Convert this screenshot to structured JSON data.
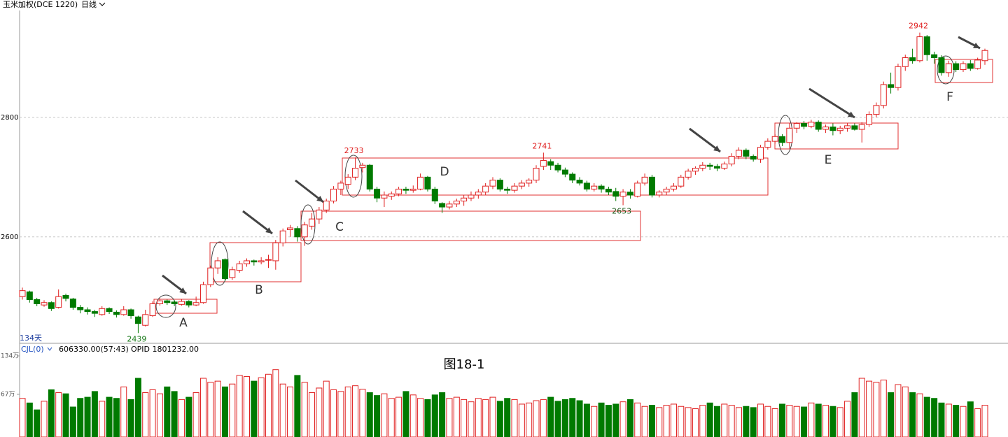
{
  "header": {
    "title": "玉米加权(DCE 1220)",
    "period": "日线",
    "days": "134天",
    "volume_info": "606330.00(57:43)",
    "oi_info": "OPID 1801232.00",
    "figure": "图18-1"
  },
  "chart_data": {
    "type": "candlestick",
    "ylim": [
      2423,
      2979
    ],
    "yticks": [
      2600,
      2800
    ],
    "grid": true,
    "up_color": "#e02020",
    "down_color": "#007a00",
    "zones": [
      "A",
      "B",
      "C",
      "D",
      "E",
      "F"
    ],
    "ohlc": [
      [
        2500,
        2515,
        2495,
        2510
      ],
      [
        2508,
        2510,
        2490,
        2495
      ],
      [
        2495,
        2498,
        2484,
        2488
      ],
      [
        2486,
        2494,
        2483,
        2490
      ],
      [
        2490,
        2492,
        2476,
        2480
      ],
      [
        2482,
        2512,
        2480,
        2500
      ],
      [
        2502,
        2505,
        2492,
        2497
      ],
      [
        2496,
        2498,
        2478,
        2482
      ],
      [
        2482,
        2486,
        2472,
        2478
      ],
      [
        2478,
        2482,
        2470,
        2475
      ],
      [
        2475,
        2478,
        2466,
        2472
      ],
      [
        2470,
        2484,
        2468,
        2480
      ],
      [
        2480,
        2482,
        2471,
        2475
      ],
      [
        2474,
        2477,
        2465,
        2470
      ],
      [
        2470,
        2484,
        2468,
        2478
      ],
      [
        2478,
        2480,
        2463,
        2468
      ],
      [
        2466,
        2468,
        2439,
        2455
      ],
      [
        2452,
        2478,
        2450,
        2470
      ],
      [
        2468,
        2492,
        2466,
        2488
      ],
      [
        2488,
        2497,
        2485,
        2493
      ],
      [
        2493,
        2495,
        2486,
        2490
      ],
      [
        2491,
        2494,
        2484,
        2488
      ],
      [
        2487,
        2496,
        2485,
        2492
      ],
      [
        2492,
        2494,
        2482,
        2486
      ],
      [
        2486,
        2500,
        2484,
        2490
      ],
      [
        2490,
        2525,
        2488,
        2520
      ],
      [
        2520,
        2552,
        2516,
        2548
      ],
      [
        2548,
        2566,
        2538,
        2560
      ],
      [
        2562,
        2564,
        2526,
        2530
      ],
      [
        2532,
        2550,
        2528,
        2545
      ],
      [
        2544,
        2560,
        2540,
        2555
      ],
      [
        2555,
        2564,
        2550,
        2560
      ],
      [
        2560,
        2562,
        2552,
        2558
      ],
      [
        2558,
        2566,
        2554,
        2560
      ],
      [
        2561,
        2570,
        2548,
        2562
      ],
      [
        2560,
        2595,
        2545,
        2590
      ],
      [
        2590,
        2614,
        2584,
        2610
      ],
      [
        2612,
        2620,
        2600,
        2615
      ],
      [
        2614,
        2618,
        2592,
        2600
      ],
      [
        2600,
        2625,
        2585,
        2620
      ],
      [
        2618,
        2640,
        2612,
        2630
      ],
      [
        2630,
        2650,
        2622,
        2645
      ],
      [
        2645,
        2664,
        2640,
        2660
      ],
      [
        2660,
        2685,
        2656,
        2680
      ],
      [
        2680,
        2694,
        2670,
        2690
      ],
      [
        2688,
        2705,
        2680,
        2700
      ],
      [
        2700,
        2733,
        2695,
        2715
      ],
      [
        2716,
        2724,
        2708,
        2720
      ],
      [
        2720,
        2722,
        2676,
        2680
      ],
      [
        2680,
        2684,
        2658,
        2665
      ],
      [
        2665,
        2676,
        2650,
        2670
      ],
      [
        2668,
        2676,
        2662,
        2672
      ],
      [
        2672,
        2684,
        2668,
        2680
      ],
      [
        2680,
        2684,
        2672,
        2678
      ],
      [
        2678,
        2686,
        2674,
        2680
      ],
      [
        2680,
        2706,
        2678,
        2700
      ],
      [
        2700,
        2702,
        2676,
        2680
      ],
      [
        2680,
        2684,
        2655,
        2660
      ],
      [
        2656,
        2658,
        2640,
        2650
      ],
      [
        2650,
        2660,
        2646,
        2655
      ],
      [
        2655,
        2664,
        2650,
        2660
      ],
      [
        2660,
        2670,
        2652,
        2665
      ],
      [
        2665,
        2676,
        2660,
        2670
      ],
      [
        2670,
        2680,
        2664,
        2675
      ],
      [
        2675,
        2690,
        2670,
        2685
      ],
      [
        2685,
        2700,
        2680,
        2695
      ],
      [
        2695,
        2698,
        2676,
        2680
      ],
      [
        2680,
        2684,
        2672,
        2678
      ],
      [
        2678,
        2690,
        2674,
        2685
      ],
      [
        2685,
        2695,
        2680,
        2690
      ],
      [
        2690,
        2698,
        2684,
        2695
      ],
      [
        2695,
        2720,
        2690,
        2715
      ],
      [
        2718,
        2741,
        2712,
        2728
      ],
      [
        2726,
        2730,
        2712,
        2720
      ],
      [
        2720,
        2724,
        2708,
        2712
      ],
      [
        2712,
        2716,
        2700,
        2705
      ],
      [
        2705,
        2708,
        2690,
        2695
      ],
      [
        2695,
        2700,
        2686,
        2690
      ],
      [
        2690,
        2694,
        2676,
        2680
      ],
      [
        2680,
        2690,
        2676,
        2685
      ],
      [
        2685,
        2688,
        2674,
        2680
      ],
      [
        2680,
        2684,
        2670,
        2675
      ],
      [
        2676,
        2682,
        2660,
        2668
      ],
      [
        2668,
        2680,
        2653,
        2675
      ],
      [
        2675,
        2680,
        2664,
        2670
      ],
      [
        2668,
        2694,
        2666,
        2690
      ],
      [
        2690,
        2706,
        2686,
        2700
      ],
      [
        2700,
        2704,
        2666,
        2670
      ],
      [
        2670,
        2678,
        2666,
        2675
      ],
      [
        2675,
        2684,
        2670,
        2680
      ],
      [
        2680,
        2690,
        2676,
        2685
      ],
      [
        2685,
        2704,
        2682,
        2700
      ],
      [
        2700,
        2714,
        2696,
        2710
      ],
      [
        2710,
        2718,
        2704,
        2715
      ],
      [
        2715,
        2725,
        2710,
        2720
      ],
      [
        2720,
        2724,
        2712,
        2718
      ],
      [
        2718,
        2722,
        2710,
        2715
      ],
      [
        2715,
        2726,
        2712,
        2722
      ],
      [
        2722,
        2740,
        2718,
        2735
      ],
      [
        2735,
        2750,
        2730,
        2745
      ],
      [
        2745,
        2748,
        2730,
        2735
      ],
      [
        2735,
        2738,
        2726,
        2730
      ],
      [
        2730,
        2754,
        2724,
        2750
      ],
      [
        2750,
        2765,
        2746,
        2760
      ],
      [
        2760,
        2772,
        2756,
        2768
      ],
      [
        2768,
        2772,
        2752,
        2758
      ],
      [
        2758,
        2790,
        2748,
        2782
      ],
      [
        2782,
        2792,
        2774,
        2790
      ],
      [
        2790,
        2794,
        2780,
        2785
      ],
      [
        2785,
        2796,
        2782,
        2792
      ],
      [
        2792,
        2795,
        2776,
        2780
      ],
      [
        2780,
        2788,
        2774,
        2784
      ],
      [
        2784,
        2790,
        2770,
        2778
      ],
      [
        2778,
        2786,
        2772,
        2782
      ],
      [
        2782,
        2790,
        2776,
        2786
      ],
      [
        2786,
        2790,
        2778,
        2780
      ],
      [
        2780,
        2792,
        2758,
        2788
      ],
      [
        2788,
        2810,
        2784,
        2805
      ],
      [
        2805,
        2825,
        2800,
        2820
      ],
      [
        2820,
        2860,
        2815,
        2855
      ],
      [
        2855,
        2875,
        2840,
        2850
      ],
      [
        2850,
        2890,
        2845,
        2885
      ],
      [
        2885,
        2905,
        2878,
        2900
      ],
      [
        2900,
        2915,
        2890,
        2895
      ],
      [
        2895,
        2942,
        2892,
        2935
      ],
      [
        2935,
        2938,
        2895,
        2905
      ],
      [
        2905,
        2910,
        2890,
        2900
      ],
      [
        2900,
        2904,
        2870,
        2875
      ],
      [
        2875,
        2895,
        2868,
        2890
      ],
      [
        2890,
        2894,
        2876,
        2880
      ],
      [
        2880,
        2894,
        2876,
        2890
      ],
      [
        2890,
        2896,
        2878,
        2882
      ],
      [
        2882,
        2900,
        2880,
        2896
      ],
      [
        2895,
        2915,
        2888,
        2912
      ]
    ],
    "volume": {
      "name": "CJL(0)",
      "ylim": [
        0,
        134
      ],
      "yticks": [
        {
          "value": 67,
          "label": "67万"
        },
        {
          "value": 134,
          "label": "134万"
        }
      ],
      "values": [
        60,
        52,
        40,
        55,
        75,
        70,
        68,
        45,
        60,
        62,
        72,
        55,
        62,
        60,
        80,
        58,
        95,
        70,
        75,
        68,
        80,
        72,
        58,
        62,
        70,
        95,
        88,
        90,
        80,
        85,
        100,
        98,
        90,
        96,
        102,
        110,
        85,
        80,
        100,
        88,
        70,
        78,
        90,
        75,
        72,
        80,
        82,
        76,
        70,
        65,
        68,
        60,
        62,
        72,
        66,
        60,
        58,
        66,
        70,
        60,
        62,
        58,
        54,
        60,
        58,
        62,
        55,
        60,
        58,
        50,
        52,
        56,
        58,
        62,
        55,
        58,
        60,
        56,
        50,
        46,
        52,
        48,
        50,
        54,
        58,
        52,
        46,
        48,
        44,
        48,
        50,
        46,
        44,
        42,
        48,
        52,
        46,
        50,
        48,
        44,
        46,
        44,
        50,
        46,
        42,
        50,
        48,
        46,
        45,
        52,
        50,
        48,
        46,
        44,
        55,
        70,
        95,
        90,
        88,
        92,
        70,
        84,
        80,
        70,
        68,
        62,
        60,
        52,
        50,
        48,
        46,
        54,
        42,
        48
      ]
    }
  }
}
